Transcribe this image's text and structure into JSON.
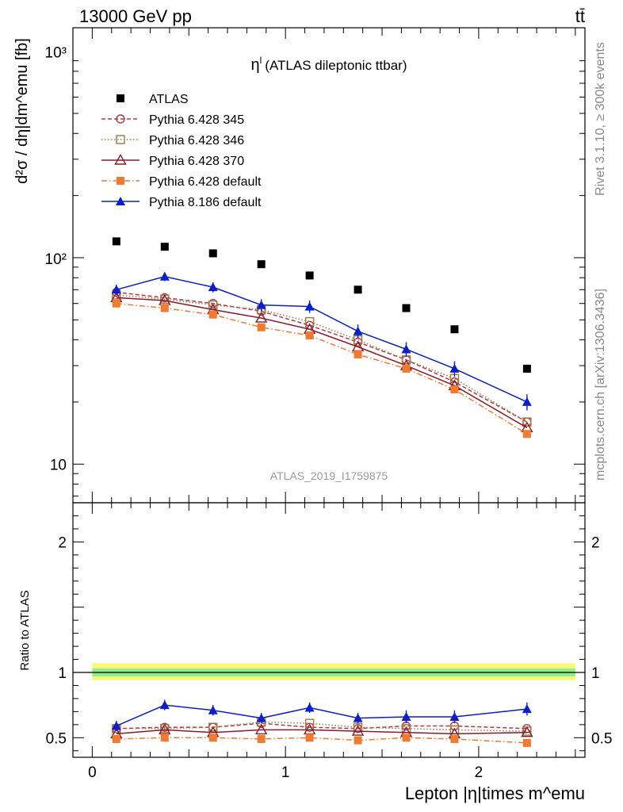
{
  "header": {
    "energy_label": "13000 GeV pp",
    "process_label": "tt̄",
    "side_label_top": "Rivet 3.1.10, ≥ 300k events",
    "side_label_bottom": "mcplots.cern.ch [arXiv:1306.3436]",
    "watermark": "ATLAS_2019_I1759875"
  },
  "chart_data": [
    {
      "type": "scatter",
      "panel": "main",
      "title": "η^l (ATLAS dileptonic ttbar)",
      "ylabel": "d²σ / dη|dm^emu [fb]",
      "yscale": "log",
      "ylim": [
        6.5,
        1300
      ],
      "xlim": [
        -0.1,
        2.55
      ],
      "yticks": [
        {
          "value": 10,
          "label": "10"
        },
        {
          "value": 100,
          "label": "10²"
        },
        {
          "value": 1000,
          "label": "10³"
        }
      ],
      "legend_placement": "top-left",
      "x": [
        0.125,
        0.375,
        0.625,
        0.875,
        1.125,
        1.375,
        1.625,
        1.875,
        2.25
      ],
      "series": [
        {
          "name": "ATLAS",
          "color": "#000000",
          "marker": "square-filled",
          "line": "none",
          "values": [
            120,
            113,
            105,
            93,
            82,
            70,
            57,
            45,
            29
          ]
        },
        {
          "name": "Pythia 6.428 345",
          "color": "#b03a48",
          "marker": "circle-open",
          "line": "dashed",
          "values": [
            68,
            64,
            60,
            55,
            47,
            39,
            32,
            25,
            16
          ]
        },
        {
          "name": "Pythia 6.428 346",
          "color": "#a07840",
          "marker": "square-open",
          "line": "dotted",
          "values": [
            66,
            63,
            59,
            56,
            49,
            40,
            32,
            26,
            16
          ]
        },
        {
          "name": "Pythia 6.428 370",
          "color": "#8b1a2a",
          "marker": "triangle-open",
          "line": "solid",
          "values": [
            64,
            62,
            56,
            51,
            45,
            37,
            30,
            24,
            15
          ]
        },
        {
          "name": "Pythia 6.428 default",
          "color": "#f07a30",
          "marker": "square-filled",
          "line": "dashdot",
          "values": [
            60,
            57,
            53,
            46,
            42,
            34,
            29,
            23,
            14
          ]
        },
        {
          "name": "Pythia 8.186 default",
          "color": "#0a1ecc",
          "marker": "triangle-filled",
          "line": "solid",
          "values": [
            70,
            81,
            72,
            59,
            58,
            44,
            36,
            29,
            20
          ],
          "errors": [
            4,
            4,
            4,
            4,
            4,
            3.5,
            3,
            2.5,
            1.8
          ]
        }
      ]
    },
    {
      "type": "scatter",
      "panel": "ratio",
      "ylabel": "Ratio to ATLAS",
      "xlabel": "Lepton |η|times m^emu",
      "ylim": [
        0.35,
        2.3
      ],
      "xlim": [
        -0.1,
        2.55
      ],
      "xticks": [
        {
          "value": 0,
          "label": "0"
        },
        {
          "value": 1,
          "label": "1"
        },
        {
          "value": 2,
          "label": "2"
        }
      ],
      "yticks": [
        {
          "value": 0.5,
          "label": "0.5"
        },
        {
          "value": 1,
          "label": "1"
        },
        {
          "value": 2,
          "label": "2"
        }
      ],
      "uncertainty_band": {
        "range_outer": [
          0.94,
          1.07
        ],
        "range_inner": [
          0.97,
          1.03
        ],
        "color_outer": "#f8f878",
        "color_inner": "#90ee90"
      },
      "x": [
        0.125,
        0.375,
        0.625,
        0.875,
        1.125,
        1.375,
        1.625,
        1.875,
        2.25
      ],
      "series": [
        {
          "name": "Pythia 6.428 345",
          "color": "#b03a48",
          "marker": "circle-open",
          "line": "dashed",
          "values": [
            0.57,
            0.58,
            0.58,
            0.61,
            0.58,
            0.57,
            0.59,
            0.59,
            0.57
          ]
        },
        {
          "name": "Pythia 6.428 346",
          "color": "#a07840",
          "marker": "square-open",
          "line": "dotted",
          "values": [
            0.57,
            0.57,
            0.58,
            0.62,
            0.61,
            0.58,
            0.57,
            0.56,
            0.55
          ]
        },
        {
          "name": "Pythia 6.428 370",
          "color": "#8b1a2a",
          "marker": "triangle-open",
          "line": "solid",
          "values": [
            0.53,
            0.56,
            0.54,
            0.56,
            0.56,
            0.55,
            0.54,
            0.53,
            0.54
          ]
        },
        {
          "name": "Pythia 6.428 default",
          "color": "#f07a30",
          "marker": "square-filled",
          "line": "dashdot",
          "values": [
            0.49,
            0.5,
            0.5,
            0.49,
            0.5,
            0.48,
            0.5,
            0.49,
            0.46
          ]
        },
        {
          "name": "Pythia 8.186 default",
          "color": "#0a1ecc",
          "marker": "triangle-filled",
          "line": "solid",
          "values": [
            0.59,
            0.75,
            0.71,
            0.65,
            0.73,
            0.65,
            0.66,
            0.66,
            0.72
          ],
          "errors": [
            0.04,
            0.04,
            0.04,
            0.04,
            0.04,
            0.04,
            0.05,
            0.05,
            0.05
          ]
        }
      ]
    }
  ]
}
